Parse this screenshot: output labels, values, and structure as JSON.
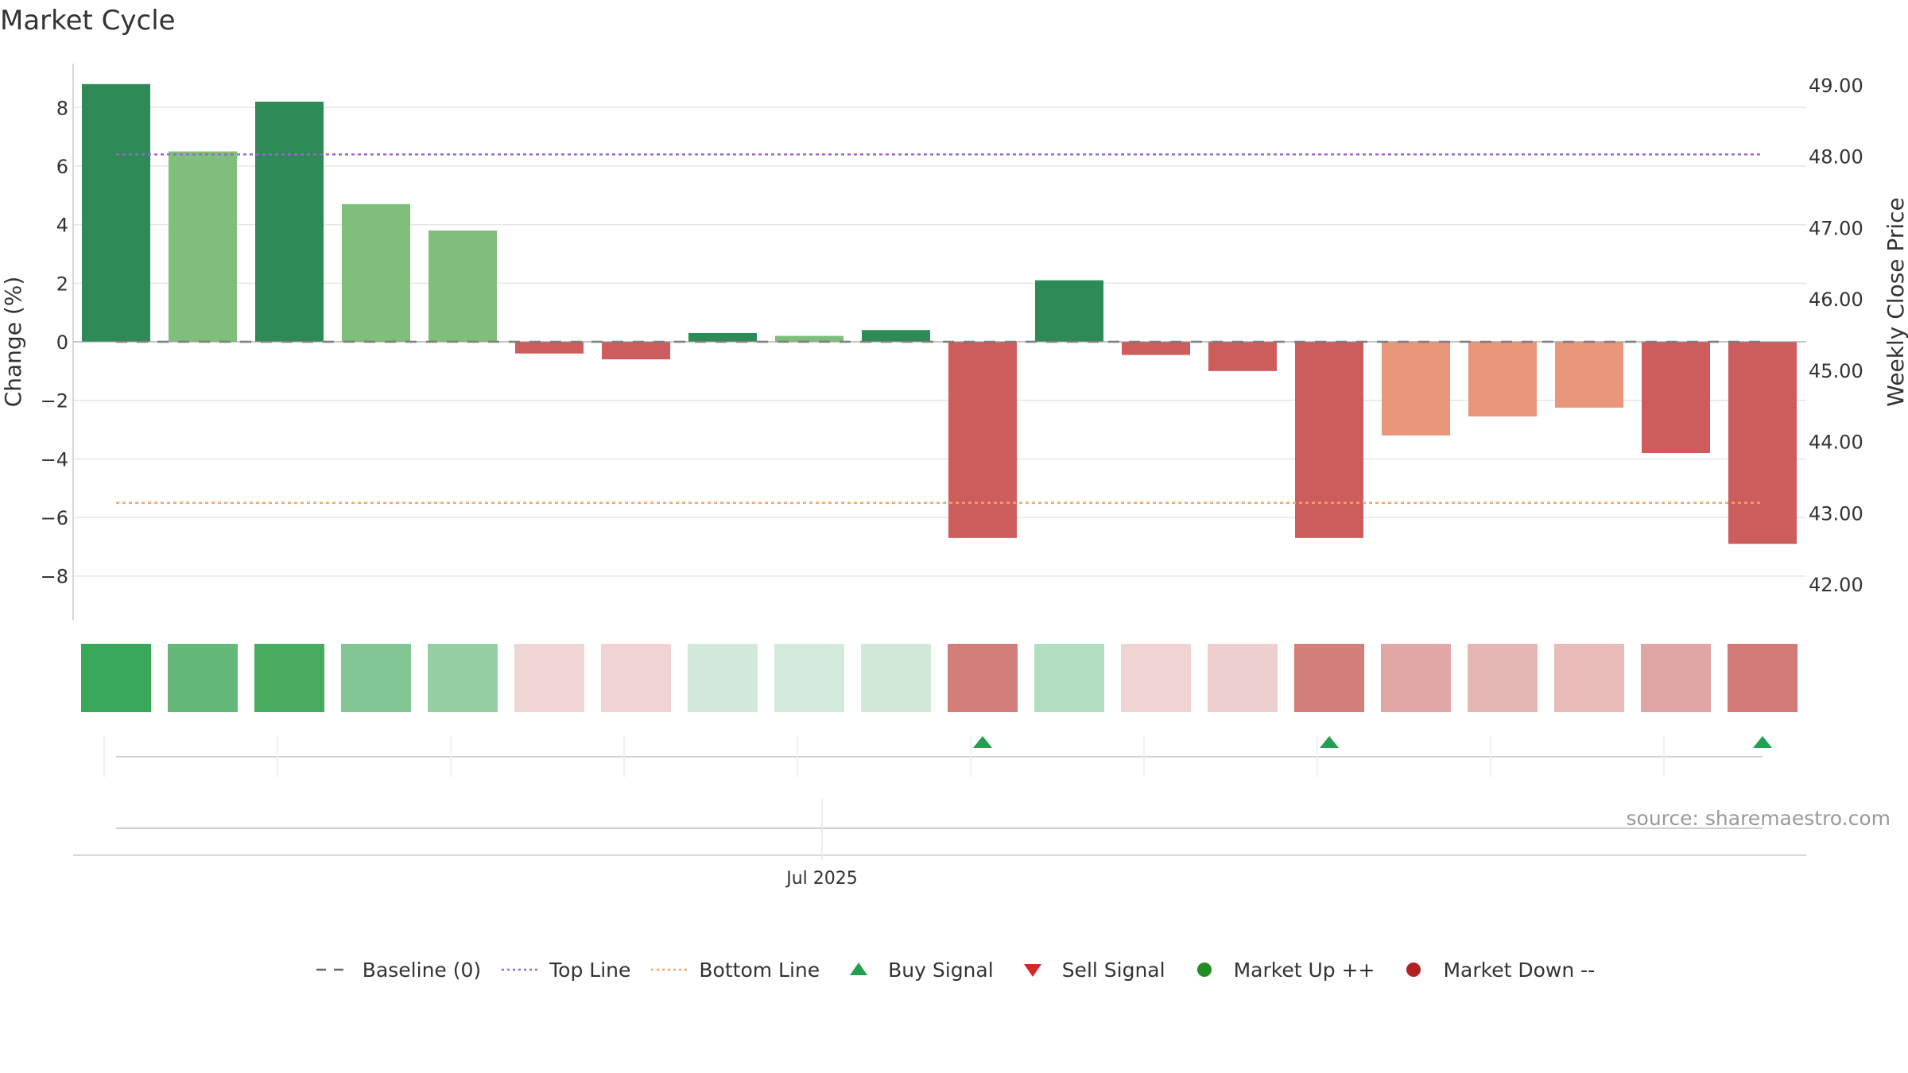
{
  "title": "Market Cycle",
  "source": "source: sharemaestro.com",
  "colors": {
    "dark_green": "#2e8b57",
    "light_green": "#7fbf7b",
    "red": "#cd5c5c",
    "salmon": "#e9967a",
    "top_line": "#9966cc",
    "bottom_line": "#f4a460",
    "baseline": "#666666",
    "buy": "#22a050",
    "sell": "#d62728",
    "market_up": "#228b22",
    "market_down": "#b22222"
  },
  "chart_data": {
    "type": "bar",
    "ylabel": "Change (%)",
    "y2label": "Weekly Close Price",
    "ylim": [
      -9.5,
      9.5
    ],
    "y2lim": [
      41.5,
      49.3
    ],
    "yticks": [
      -8,
      -6,
      -4,
      -2,
      0,
      2,
      4,
      6,
      8
    ],
    "ytick_labels": [
      "−8",
      "−6",
      "−4",
      "−2",
      "0",
      "2",
      "4",
      "6",
      "8"
    ],
    "y2ticks": [
      "42.00",
      "43.00",
      "44.00",
      "45.00",
      "46.00",
      "47.00",
      "48.00",
      "49.00"
    ],
    "xtick_label": "Jul 2025",
    "values": [
      8.8,
      6.5,
      8.2,
      4.7,
      3.8,
      -0.4,
      -0.6,
      0.3,
      0.2,
      0.4,
      -6.7,
      2.1,
      -0.45,
      -1.0,
      -6.7,
      -3.2,
      -2.55,
      -2.25,
      -3.8,
      -6.9
    ],
    "bar_colors": [
      "dark_green",
      "light_green",
      "dark_green",
      "light_green",
      "light_green",
      "red",
      "red",
      "dark_green",
      "light_green",
      "dark_green",
      "red",
      "dark_green",
      "red",
      "red",
      "red",
      "salmon",
      "salmon",
      "salmon",
      "red",
      "red"
    ],
    "strip_colors": [
      "#3aa85a",
      "#64b978",
      "#47ac5f",
      "#82c793",
      "#95d0a4",
      "#f0d5d5",
      "#efd4d3",
      "#d1eadb",
      "#d3ebdd",
      "#cfe8d7",
      "#d27f79",
      "#b2dec0",
      "#efd4d3",
      "#edcfcf",
      "#d3807a",
      "#e1a9a6",
      "#e4b7b5",
      "#e6bbb8",
      "#dfa6a4",
      "#d27a75"
    ],
    "top_line": 6.4,
    "bottom_line": -5.5,
    "buy_signals": [
      10,
      14,
      19
    ],
    "sell_signals": []
  },
  "legend": [
    {
      "label": "Baseline (0)",
      "symbol": "dash"
    },
    {
      "label": "Top Line",
      "symbol": "dot-purple"
    },
    {
      "label": "Bottom Line",
      "symbol": "dot-orange"
    },
    {
      "label": "Buy Signal",
      "symbol": "triangle-up"
    },
    {
      "label": "Sell Signal",
      "symbol": "triangle-down"
    },
    {
      "label": "Market Up ++",
      "symbol": "circle-green"
    },
    {
      "label": "Market Down --",
      "symbol": "circle-red"
    }
  ]
}
